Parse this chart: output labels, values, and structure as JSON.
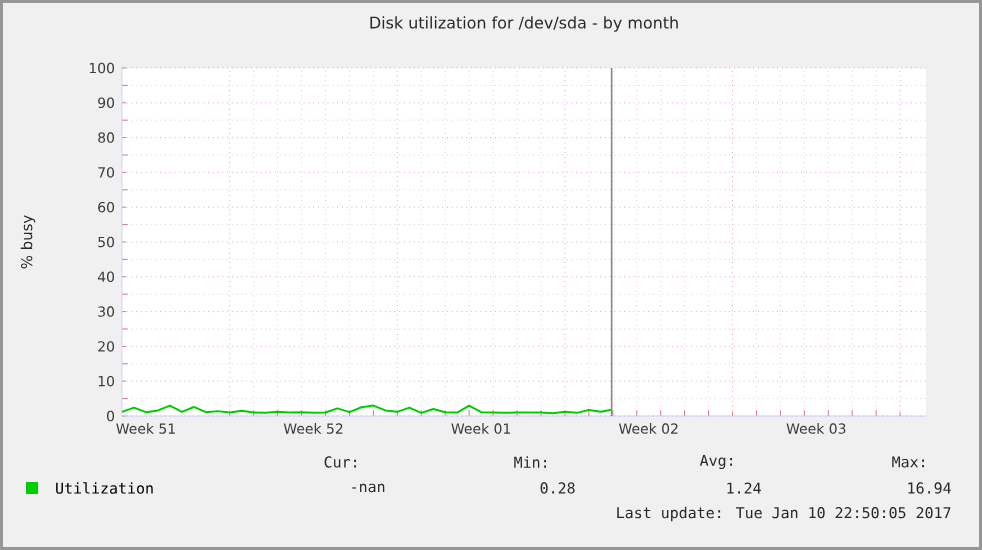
{
  "chart_data": {
    "type": "line",
    "title": "Disk utilization for /dev/sda - by month",
    "ylabel": "% busy",
    "x": [
      "2016-12-21T12:00",
      "2016-12-22T00:00",
      "2016-12-22T12:00",
      "2016-12-23T00:00",
      "2016-12-23T12:00",
      "2016-12-24T00:00",
      "2016-12-24T12:00",
      "2016-12-25T00:00",
      "2016-12-25T12:00",
      "2016-12-26T00:00",
      "2016-12-26T12:00",
      "2016-12-27T00:00",
      "2016-12-27T12:00",
      "2016-12-28T00:00",
      "2016-12-28T12:00",
      "2016-12-29T00:00",
      "2016-12-29T12:00",
      "2016-12-30T00:00",
      "2016-12-30T12:00",
      "2016-12-31T00:00",
      "2016-12-31T12:00",
      "2017-01-01T00:00",
      "2017-01-01T12:00",
      "2017-01-02T00:00",
      "2017-01-02T12:00",
      "2017-01-03T00:00",
      "2017-01-03T12:00",
      "2017-01-04T00:00",
      "2017-01-04T12:00",
      "2017-01-05T00:00",
      "2017-01-05T12:00",
      "2017-01-06T00:00",
      "2017-01-06T12:00",
      "2017-01-07T00:00",
      "2017-01-07T12:00",
      "2017-01-08T00:00",
      "2017-01-08T12:00",
      "2017-01-09T00:00",
      "2017-01-09T12:00",
      "2017-01-10T00:00",
      "2017-01-10T12:00",
      "2017-01-10T22:50"
    ],
    "series": [
      {
        "name": "Utilization",
        "color": "#00cc00",
        "values": [
          1.2,
          2.4,
          1.1,
          1.6,
          3.0,
          1.2,
          2.6,
          1.1,
          1.4,
          1.0,
          1.5,
          1.0,
          0.9,
          1.2,
          1.0,
          1.1,
          0.9,
          1.0,
          2.2,
          1.1,
          2.5,
          3.0,
          1.6,
          1.2,
          2.4,
          0.9,
          2.0,
          1.1,
          1.0,
          3.0,
          1.1,
          1.0,
          0.9,
          1.0,
          1.0,
          1.0,
          0.8,
          1.2,
          0.9,
          1.7,
          1.2,
          1.8
        ]
      }
    ],
    "xlim": [
      "2016-12-21T12:00",
      "2017-01-24T02:00"
    ],
    "xticks": [
      {
        "value": "2016-12-22T12:00",
        "label": "Week 51"
      },
      {
        "value": "2016-12-26T00:00",
        "label": null
      },
      {
        "value": "2016-12-29T12:00",
        "label": "Week 52"
      },
      {
        "value": "2017-01-02T00:00",
        "label": null
      },
      {
        "value": "2017-01-05T12:00",
        "label": "Week 01"
      },
      {
        "value": "2017-01-09T00:00",
        "label": null
      },
      {
        "value": "2017-01-12T12:00",
        "label": "Week 02"
      },
      {
        "value": "2017-01-16T00:00",
        "label": null
      },
      {
        "value": "2017-01-19T12:00",
        "label": "Week 03"
      },
      {
        "value": "2017-01-23T00:00",
        "label": null
      }
    ],
    "ylim": [
      0,
      100
    ],
    "yticks": [
      0,
      10,
      20,
      30,
      40,
      50,
      60,
      70,
      80,
      90,
      100
    ],
    "grid": true,
    "legend": "bottom left",
    "marker": "none",
    "line_style": "solid",
    "ref_lines": [
      {
        "axis": "x",
        "value": "2017-01-10T22:50",
        "color": "#888888"
      }
    ],
    "annotations": [
      "Cur:",
      "Min:",
      "Avg:",
      "Max:",
      "-nan",
      "0.28",
      "1.24",
      "16.94",
      "Last update: Tue Jan 10 22:50:05 2017"
    ]
  }
}
